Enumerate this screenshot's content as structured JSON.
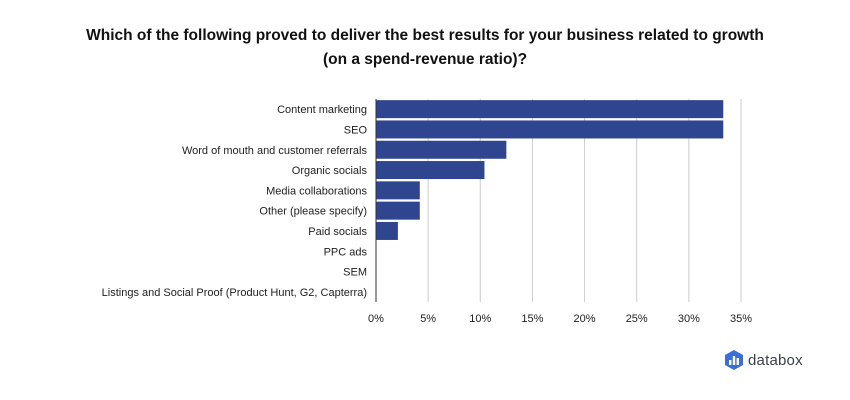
{
  "chart_data": {
    "type": "bar",
    "orientation": "horizontal",
    "title_line1": "Which of the following proved to deliver the best results for your business related to growth",
    "title_line2": "(on a spend-revenue ratio)?",
    "categories": [
      "Content marketing",
      "SEO",
      "Word of mouth and customer referrals",
      "Organic socials",
      "Media collaborations",
      "Other (please specify)",
      "Paid socials",
      "PPC ads",
      "SEM",
      "Listings and Social Proof (Product Hunt, G2, Capterra)"
    ],
    "values": [
      33.3,
      33.3,
      12.5,
      10.4,
      4.2,
      4.2,
      2.1,
      0,
      0,
      0
    ],
    "xlim": [
      0,
      35
    ],
    "xticks": [
      0,
      5,
      10,
      15,
      20,
      25,
      30,
      35
    ],
    "tick_format": "%",
    "grid": true,
    "legend": "none",
    "bar_color": "#2f4590",
    "grid_color": "#cccccc"
  },
  "branding": {
    "logo_text": "databox",
    "logo_color": "#3a6fd8"
  }
}
